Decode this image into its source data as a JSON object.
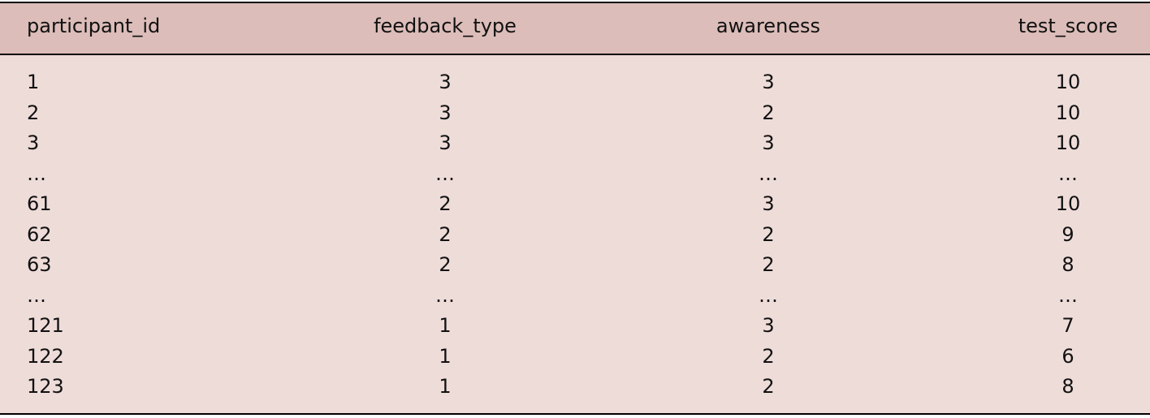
{
  "table": {
    "columns": [
      "participant_id",
      "feedback_type",
      "awareness",
      "test_score"
    ],
    "rows": [
      [
        1,
        3,
        3,
        10
      ],
      [
        2,
        3,
        2,
        10
      ],
      [
        3,
        3,
        3,
        10
      ],
      [
        "…",
        "…",
        "…",
        "…"
      ],
      [
        61,
        2,
        3,
        10
      ],
      [
        62,
        2,
        2,
        9
      ],
      [
        63,
        2,
        2,
        8
      ],
      [
        "…",
        "…",
        "…",
        "…"
      ],
      [
        121,
        1,
        3,
        7
      ],
      [
        122,
        1,
        2,
        6
      ],
      [
        123,
        1,
        2,
        8
      ]
    ]
  }
}
